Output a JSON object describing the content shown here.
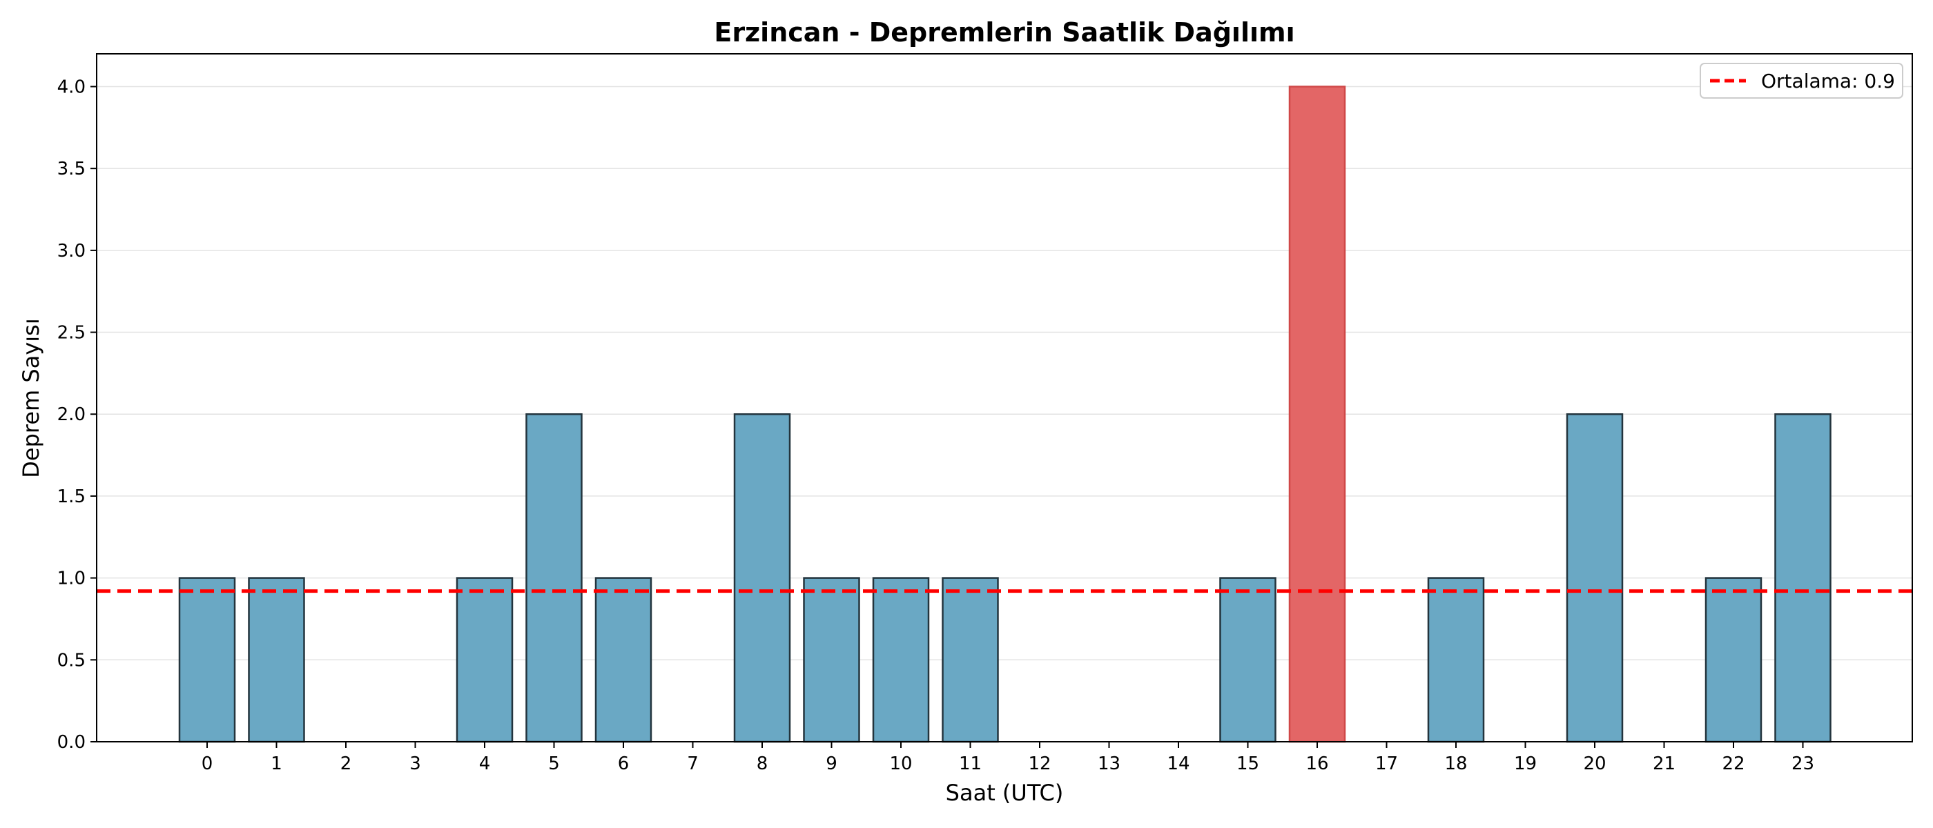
{
  "chart_data": {
    "type": "bar",
    "title": "Erzincan - Depremlerin Saatlik Dağılımı",
    "xlabel": "Saat (UTC)",
    "ylabel": "Deprem Sayısı",
    "categories": [
      "0",
      "1",
      "2",
      "3",
      "4",
      "5",
      "6",
      "7",
      "8",
      "9",
      "10",
      "11",
      "12",
      "13",
      "14",
      "15",
      "16",
      "17",
      "18",
      "19",
      "20",
      "21",
      "22",
      "23"
    ],
    "values": [
      1,
      1,
      0,
      0,
      1,
      2,
      1,
      0,
      2,
      1,
      1,
      1,
      0,
      0,
      0,
      1,
      4,
      0,
      1,
      0,
      2,
      0,
      1,
      2
    ],
    "ylim": [
      0,
      4.2
    ],
    "y_ticks": [
      "0.0",
      "0.5",
      "1.0",
      "1.5",
      "2.0",
      "2.5",
      "3.0",
      "3.5",
      "4.0"
    ],
    "mean_line": {
      "value": 0.92,
      "label": "Ortalama: 0.9",
      "color": "#ff0000"
    },
    "highlight_category": "16",
    "bar_color": "#6aa8c4",
    "highlight_color": "#e36666",
    "grid": "y",
    "legend_position": "top-right"
  }
}
